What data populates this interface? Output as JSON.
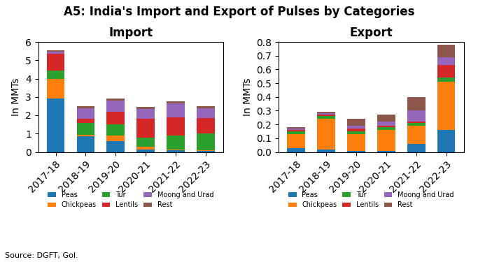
{
  "title": "A5: India's Import and Export of Pulses by Categories",
  "annotations": [
    "Source: DGFT, GoI."
  ],
  "chart_data": [
    {
      "type": "bar",
      "stacked": true,
      "title": "Import",
      "ylabel": "In MMTs",
      "categories": [
        "2017-18",
        "2018-19",
        "2019-20",
        "2020-21",
        "2021-22",
        "2022-23"
      ],
      "series": [
        {
          "name": "Peas",
          "values": [
            2.9,
            0.85,
            0.6,
            0.15,
            0.1,
            0.05
          ]
        },
        {
          "name": "Chickpeas",
          "values": [
            1.1,
            0.1,
            0.3,
            0.15,
            0.05,
            0.05
          ]
        },
        {
          "name": "Tur",
          "values": [
            0.45,
            0.65,
            0.6,
            0.5,
            0.75,
            0.9
          ]
        },
        {
          "name": "Lentils",
          "values": [
            0.9,
            0.2,
            0.7,
            1.0,
            1.0,
            0.85
          ]
        },
        {
          "name": "Moong and Urad",
          "values": [
            0.1,
            0.6,
            0.6,
            0.55,
            0.75,
            0.55
          ]
        },
        {
          "name": "Rest",
          "values": [
            0.1,
            0.1,
            0.1,
            0.1,
            0.1,
            0.1
          ]
        }
      ],
      "ylim": [
        0,
        6
      ],
      "yticks": [
        0,
        1,
        2,
        3,
        4,
        5,
        6
      ],
      "legend": "upper center"
    },
    {
      "type": "bar",
      "stacked": true,
      "title": "Export",
      "ylabel": "In MMTs",
      "categories": [
        "2017-18",
        "2018-19",
        "2019-20",
        "2020-21",
        "2021-22",
        "2022-23"
      ],
      "series": [
        {
          "name": "Peas",
          "values": [
            0.03,
            0.02,
            0.01,
            0.01,
            0.06,
            0.16
          ]
        },
        {
          "name": "Chickpeas",
          "values": [
            0.1,
            0.22,
            0.12,
            0.15,
            0.13,
            0.35
          ]
        },
        {
          "name": "Tur",
          "values": [
            0.02,
            0.02,
            0.02,
            0.02,
            0.02,
            0.03
          ]
        },
        {
          "name": "Lentils",
          "values": [
            0.01,
            0.01,
            0.02,
            0.01,
            0.01,
            0.09
          ]
        },
        {
          "name": "Moong and Urad",
          "values": [
            0.01,
            0.01,
            0.02,
            0.03,
            0.08,
            0.06
          ]
        },
        {
          "name": "Rest",
          "values": [
            0.01,
            0.01,
            0.05,
            0.05,
            0.1,
            0.09
          ]
        }
      ],
      "ylim": [
        0,
        0.8
      ],
      "yticks": [
        0.0,
        0.1,
        0.2,
        0.3,
        0.4,
        0.5,
        0.6,
        0.7,
        0.8
      ],
      "legend": "upper center"
    }
  ]
}
